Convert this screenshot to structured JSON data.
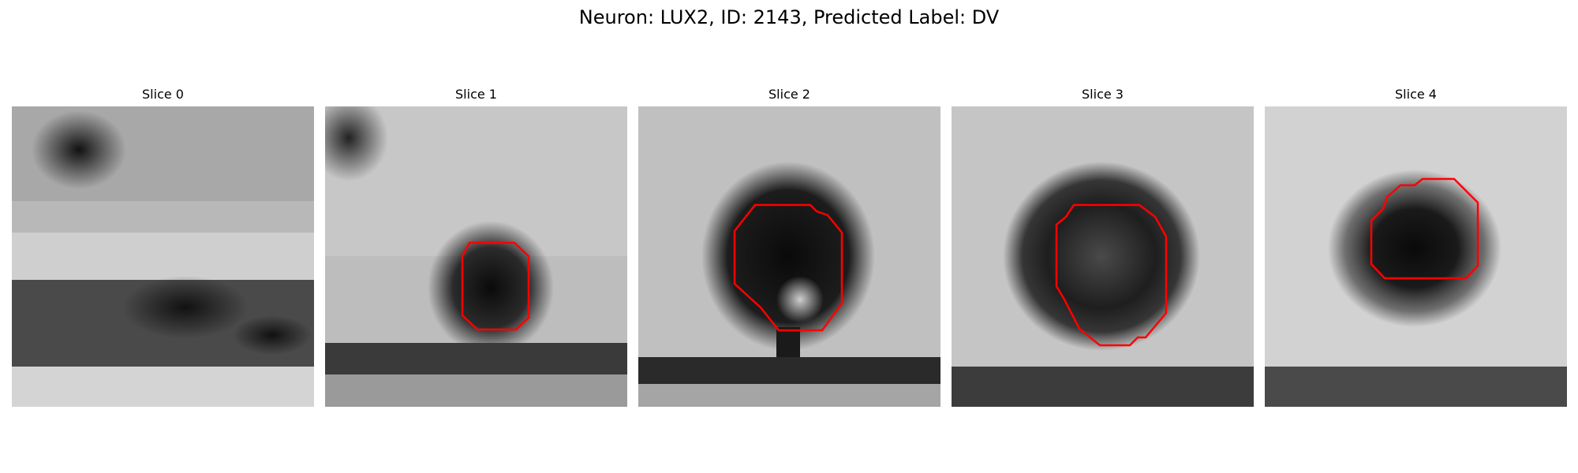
{
  "figure": {
    "title": "Neuron: LUX2, ID: 2143, Predicted Label: DV"
  },
  "panels": [
    {
      "title": "Slice 0",
      "has_contour": false
    },
    {
      "title": "Slice 1",
      "has_contour": true
    },
    {
      "title": "Slice 2",
      "has_contour": true
    },
    {
      "title": "Slice 3",
      "has_contour": true
    },
    {
      "title": "Slice 4",
      "has_contour": true
    }
  ],
  "colors": {
    "background": "#ffffff",
    "contour": "#ff0000",
    "colormap": "gray"
  }
}
